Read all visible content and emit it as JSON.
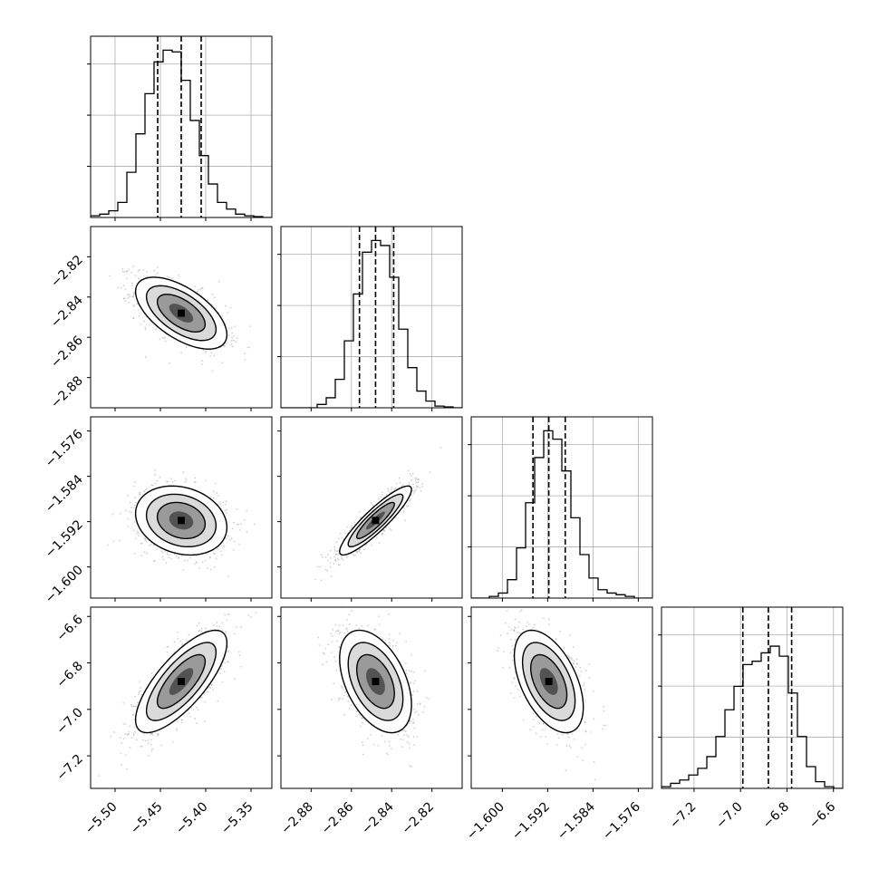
{
  "chart_data": {
    "type": "corner",
    "title": "",
    "parameters": [
      "",
      "",
      "",
      ""
    ],
    "ranges": [
      [
        -5.527,
        -5.327
      ],
      [
        -2.895,
        -2.805
      ],
      [
        -1.6055,
        -1.5735
      ],
      [
        -7.34,
        -6.56
      ]
    ],
    "ticks": [
      [
        -5.5,
        -5.45,
        -5.4,
        -5.35
      ],
      [
        -2.88,
        -2.86,
        -2.84,
        -2.82
      ],
      [
        -1.6,
        -1.592,
        -1.584,
        -1.576
      ],
      [
        -7.2,
        -7.0,
        -6.8,
        -6.6
      ]
    ],
    "tick_labels": [
      [
        "−5.50",
        "−5.45",
        "−5.40",
        "−5.35"
      ],
      [
        "−2.88",
        "−2.86",
        "−2.84",
        "−2.82"
      ],
      [
        "−1.600",
        "−1.592",
        "−1.584",
        "−1.576"
      ],
      [
        "−7.2",
        "−7.0",
        "−6.8",
        "−6.6"
      ]
    ],
    "medians": [
      -5.427,
      -2.848,
      -1.5918,
      -6.88
    ],
    "quantile_16": [
      -5.453,
      -2.856,
      -1.5946,
      -6.99
    ],
    "quantile_84": [
      -5.405,
      -2.839,
      -1.5889,
      -6.78
    ],
    "stdevs": [
      0.024,
      0.0085,
      0.0029,
      0.105
    ],
    "correlations": [
      [
        1.0,
        -0.6,
        -0.2,
        0.75
      ],
      [
        -0.6,
        1.0,
        0.9,
        -0.45
      ],
      [
        -0.2,
        0.9,
        1.0,
        -0.5
      ],
      [
        0.75,
        -0.45,
        -0.5,
        1.0
      ]
    ],
    "histogram_counts": [
      [
        0.01,
        0.02,
        0.04,
        0.09,
        0.27,
        0.5,
        0.74,
        0.93,
        1.0,
        0.99,
        0.82,
        0.58,
        0.37,
        0.2,
        0.09,
        0.05,
        0.02,
        0.01,
        0.005,
        0.0
      ],
      [
        0.0,
        0.0,
        0.0,
        0.0,
        0.02,
        0.06,
        0.17,
        0.4,
        0.68,
        0.93,
        1.0,
        0.97,
        0.78,
        0.47,
        0.24,
        0.1,
        0.04,
        0.01,
        0.005,
        0.0
      ],
      [
        0.0,
        0.0,
        0.01,
        0.03,
        0.11,
        0.3,
        0.57,
        0.84,
        1.0,
        0.95,
        0.76,
        0.48,
        0.26,
        0.12,
        0.05,
        0.03,
        0.02,
        0.01,
        0.0,
        0.0
      ],
      [
        0.01,
        0.03,
        0.05,
        0.08,
        0.12,
        0.19,
        0.31,
        0.47,
        0.61,
        0.74,
        0.76,
        0.81,
        0.85,
        0.79,
        0.57,
        0.31,
        0.13,
        0.04,
        0.01,
        0.0
      ]
    ],
    "grid": true,
    "contour_levels": 3,
    "show_points": true
  }
}
